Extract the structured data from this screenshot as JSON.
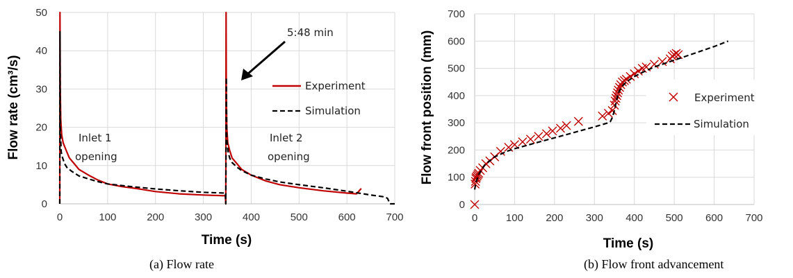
{
  "chart_data": [
    {
      "type": "line",
      "caption": "(a)    Flow rate",
      "xlabel": "Time (s)",
      "ylabel": "Flow rate (cm³/s)",
      "xlim": [
        0,
        700
      ],
      "ylim": [
        0,
        50
      ],
      "xticks": [
        "0",
        "100",
        "200",
        "300",
        "400",
        "500",
        "600",
        "700"
      ],
      "yticks": [
        "0",
        "10",
        "20",
        "30",
        "40",
        "50"
      ],
      "grid": true,
      "legend_position": "right",
      "annotations": [
        {
          "text": "5:48 min",
          "kind": "arrow",
          "x": 348,
          "y": 32
        },
        {
          "text": "Inlet 1",
          "x": 70,
          "y": 17
        },
        {
          "text": "opening",
          "x": 70,
          "y": 12.5
        },
        {
          "text": "Inlet 2",
          "x": 435,
          "y": 17
        },
        {
          "text": "opening",
          "x": 435,
          "y": 12.5
        }
      ],
      "series": [
        {
          "name": "Experiment",
          "color": "#c00000",
          "style": "solid",
          "x": [
            0,
            0.5,
            1,
            2,
            4,
            7,
            10,
            15,
            20,
            30,
            40,
            60,
            80,
            100,
            130,
            160,
            200,
            250,
            300,
            346,
            347,
            347.5,
            348,
            349,
            351,
            355,
            360,
            370,
            380,
            400,
            430,
            460,
            500,
            550,
            600,
            620,
            630
          ],
          "y": [
            0,
            50,
            30,
            22,
            18,
            16,
            15,
            13.5,
            12,
            10.5,
            9,
            7.5,
            6.2,
            5.2,
            4.5,
            4,
            3.2,
            2.6,
            2.3,
            2.1,
            0,
            50,
            30,
            20,
            16,
            14,
            12,
            10.5,
            9,
            7.5,
            6,
            5,
            4.2,
            3.4,
            2.8,
            2.6,
            4
          ]
        },
        {
          "name": "Simulation",
          "color": "#000000",
          "style": "dashed",
          "x": [
            0,
            0.5,
            1,
            3,
            6,
            10,
            15,
            25,
            40,
            60,
            80,
            100,
            150,
            200,
            250,
            300,
            346,
            347,
            348,
            349,
            352,
            355,
            360,
            370,
            380,
            400,
            430,
            460,
            500,
            550,
            600,
            650,
            680,
            685,
            690,
            700
          ],
          "y": [
            0,
            45,
            20,
            13.5,
            12,
            10.5,
            9.5,
            8.5,
            7.3,
            6.5,
            5.8,
            5.2,
            4.5,
            3.9,
            3.4,
            3,
            2.8,
            0,
            33,
            17,
            13.5,
            12,
            10.8,
            9.6,
            8.7,
            7.5,
            6.5,
            5.7,
            5,
            4.2,
            3.3,
            2.3,
            1.8,
            1.4,
            0,
            0
          ]
        }
      ]
    },
    {
      "type": "scatter",
      "caption": "(b) Flow front advancement",
      "xlabel": "Time (s)",
      "ylabel": "Flow front position (mm)",
      "xlim": [
        0,
        700
      ],
      "ylim": [
        0,
        700
      ],
      "xticks": [
        "0",
        "100",
        "200",
        "300",
        "400",
        "500",
        "600",
        "700"
      ],
      "yticks": [
        "0",
        "100",
        "200",
        "300",
        "400",
        "500",
        "600",
        "700"
      ],
      "grid": true,
      "legend_position": "right",
      "series": [
        {
          "name": "Experiment",
          "color": "#c00000",
          "marker": "x",
          "x": [
            0,
            1,
            2,
            3,
            4,
            6,
            8,
            10,
            14,
            20,
            28,
            38,
            50,
            65,
            85,
            100,
            120,
            140,
            160,
            180,
            195,
            215,
            230,
            260,
            320,
            335,
            345,
            350,
            352,
            354,
            356,
            358,
            360,
            363,
            366,
            370,
            375,
            380,
            390,
            400,
            410,
            420,
            430,
            450,
            470,
            490,
            495,
            500,
            505,
            510
          ],
          "y": [
            0,
            75,
            85,
            95,
            100,
            105,
            110,
            115,
            125,
            135,
            150,
            160,
            175,
            195,
            210,
            220,
            230,
            240,
            250,
            260,
            270,
            280,
            290,
            305,
            325,
            335,
            345,
            365,
            380,
            390,
            400,
            410,
            420,
            430,
            440,
            450,
            455,
            460,
            470,
            480,
            490,
            500,
            505,
            515,
            525,
            535,
            545,
            550,
            555,
            550
          ]
        },
        {
          "name": "Simulation",
          "color": "#000000",
          "style": "dashed",
          "x": [
            0,
            3,
            10,
            25,
            50,
            80,
            100,
            150,
            200,
            250,
            300,
            335,
            340,
            345,
            350,
            355,
            360,
            370,
            380,
            400,
            420,
            450,
            480,
            500,
            510,
            520,
            550,
            600,
            635
          ],
          "y": [
            55,
            80,
            110,
            145,
            175,
            195,
            205,
            225,
            245,
            265,
            285,
            300,
            305,
            320,
            345,
            380,
            410,
            435,
            450,
            470,
            485,
            505,
            520,
            530,
            535,
            540,
            555,
            580,
            600
          ]
        }
      ]
    }
  ]
}
